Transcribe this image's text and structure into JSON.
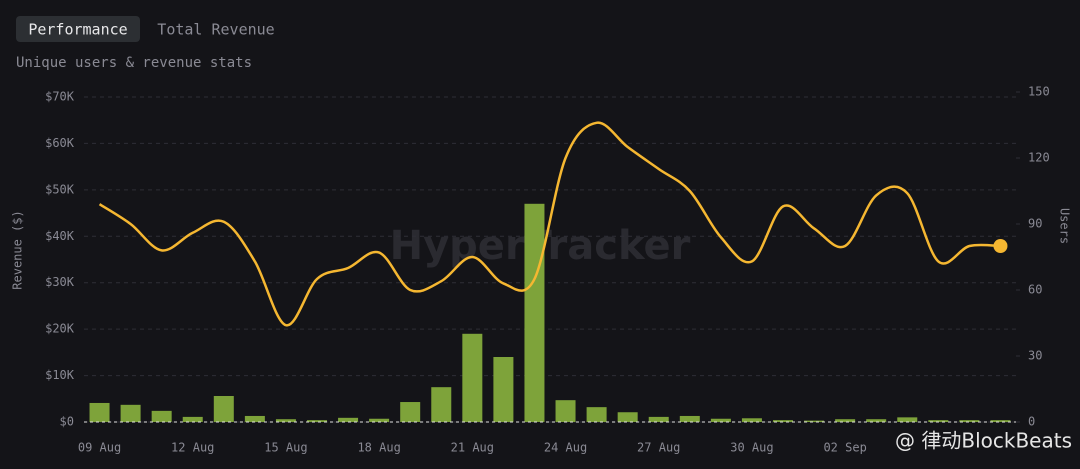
{
  "tabs": [
    "Performance",
    "Total Revenue"
  ],
  "chart_data": {
    "type": "bar-line",
    "subtitle": "Unique users & revenue stats",
    "watermark": "HyperTracker",
    "source": "@ 律动BlockBeats",
    "ylabel": "Revenue ($)",
    "y2label": "Users",
    "categories": [
      "09 Aug",
      null,
      null,
      "12 Aug",
      null,
      null,
      "15 Aug",
      null,
      null,
      "18 Aug",
      null,
      null,
      "21 Aug",
      null,
      null,
      "24 Aug",
      null,
      null,
      "27 Aug",
      null,
      null,
      "30 Aug",
      null,
      null,
      "02 Sep",
      null,
      null,
      null,
      null,
      null
    ],
    "series": [
      {
        "name": "Revenue",
        "type": "bar",
        "color": "#7ea33a",
        "values": [
          4100,
          3700,
          2400,
          1100,
          5600,
          1300,
          600,
          400,
          900,
          700,
          4300,
          7500,
          19000,
          14000,
          47000,
          4700,
          3200,
          2100,
          1100,
          1300,
          700,
          800,
          400,
          300,
          600,
          600,
          1000,
          400,
          400,
          400
        ]
      },
      {
        "name": "Users",
        "type": "line",
        "axis": "y2",
        "color": "#f5b731",
        "values": [
          99,
          90,
          78,
          86,
          91,
          73,
          44,
          65,
          70,
          77,
          60,
          64,
          75,
          63,
          65,
          120,
          136,
          125,
          115,
          105,
          84,
          73,
          98,
          88,
          80,
          103,
          104,
          73,
          80,
          80
        ]
      }
    ],
    "ylim": [
      0,
      70000
    ],
    "yticks": [
      {
        "value": 0,
        "label": "$0"
      },
      {
        "value": 10000,
        "label": "$10K"
      },
      {
        "value": 20000,
        "label": "$20K"
      },
      {
        "value": 30000,
        "label": "$30K"
      },
      {
        "value": 40000,
        "label": "$40K"
      },
      {
        "value": 50000,
        "label": "$50K"
      },
      {
        "value": 60000,
        "label": "$60K"
      },
      {
        "value": 70000,
        "label": "$70K"
      }
    ],
    "y2lim": [
      0,
      150
    ],
    "y2ticks": [
      0,
      30,
      60,
      90,
      120,
      150
    ],
    "grid": true
  }
}
